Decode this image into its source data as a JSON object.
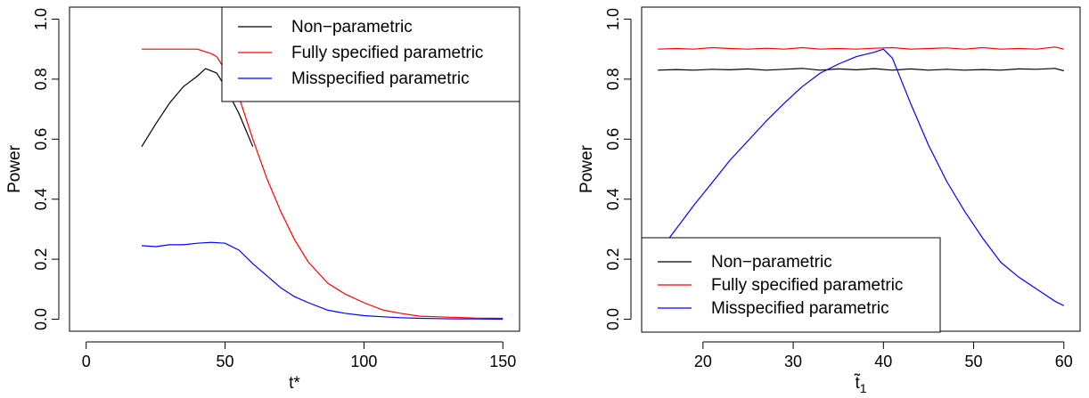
{
  "chart_data": [
    {
      "type": "line",
      "xlabel": "t*",
      "ylabel": "Power",
      "xlim": [
        0,
        150
      ],
      "ylim": [
        0,
        1
      ],
      "xticks": [
        "0",
        "50",
        "100",
        "150"
      ],
      "yticks": [
        "0.0",
        "0.2",
        "0.4",
        "0.6",
        "0.8",
        "1.0"
      ],
      "grid": false,
      "legend_position": "top-right",
      "series": [
        {
          "name": "Non−parametric",
          "color": "#000000",
          "x": [
            20,
            25,
            30,
            35,
            40,
            43,
            47,
            50,
            55,
            60
          ],
          "y": [
            0.575,
            0.65,
            0.72,
            0.775,
            0.81,
            0.835,
            0.82,
            0.775,
            0.685,
            0.575
          ]
        },
        {
          "name": "Fully specified parametric",
          "color": "#ff0000",
          "x": [
            20,
            25,
            30,
            35,
            40,
            45,
            47,
            50,
            55,
            60,
            65,
            70,
            75,
            80,
            87,
            93,
            100,
            107,
            113,
            120,
            127,
            133,
            140,
            150
          ],
          "y": [
            0.9,
            0.9,
            0.9,
            0.9,
            0.9,
            0.885,
            0.875,
            0.83,
            0.74,
            0.6,
            0.47,
            0.36,
            0.265,
            0.19,
            0.12,
            0.085,
            0.055,
            0.03,
            0.02,
            0.01,
            0.008,
            0.006,
            0.004,
            0.003
          ]
        },
        {
          "name": "Misspecified parametric",
          "color": "#0000ff",
          "x": [
            20,
            25,
            30,
            35,
            40,
            45,
            50,
            55,
            60,
            65,
            70,
            75,
            80,
            87,
            93,
            100,
            107,
            113,
            120,
            127,
            133,
            140,
            150
          ],
          "y": [
            0.245,
            0.242,
            0.248,
            0.248,
            0.253,
            0.256,
            0.253,
            0.23,
            0.185,
            0.145,
            0.105,
            0.075,
            0.055,
            0.03,
            0.02,
            0.012,
            0.008,
            0.005,
            0.003,
            0.002,
            0.001,
            0.001,
            0.0
          ]
        }
      ]
    },
    {
      "type": "line",
      "xlabel": "t̃",
      "xlabel_subscript": "1",
      "ylabel": "Power",
      "xlim": [
        15,
        60
      ],
      "ylim": [
        0,
        1
      ],
      "xticks": [
        "20",
        "30",
        "40",
        "50",
        "60"
      ],
      "yticks": [
        "0.0",
        "0.2",
        "0.4",
        "0.6",
        "0.8",
        "1.0"
      ],
      "grid": false,
      "legend_position": "bottom-left",
      "series": [
        {
          "name": "Non−parametric",
          "color": "#000000",
          "x": [
            15,
            17,
            19,
            21,
            23,
            25,
            27,
            29,
            31,
            33,
            35,
            37,
            39,
            41,
            43,
            45,
            47,
            49,
            51,
            53,
            55,
            57,
            59,
            60
          ],
          "y": [
            0.83,
            0.832,
            0.83,
            0.833,
            0.831,
            0.834,
            0.83,
            0.833,
            0.836,
            0.83,
            0.834,
            0.831,
            0.835,
            0.83,
            0.834,
            0.83,
            0.833,
            0.83,
            0.832,
            0.83,
            0.834,
            0.833,
            0.836,
            0.828
          ]
        },
        {
          "name": "Fully specified parametric",
          "color": "#ff0000",
          "x": [
            15,
            17,
            19,
            21,
            23,
            25,
            27,
            29,
            31,
            33,
            35,
            37,
            39,
            41,
            43,
            45,
            47,
            49,
            51,
            53,
            55,
            57,
            59,
            60
          ],
          "y": [
            0.9,
            0.902,
            0.9,
            0.905,
            0.902,
            0.9,
            0.903,
            0.9,
            0.905,
            0.9,
            0.902,
            0.9,
            0.903,
            0.905,
            0.9,
            0.902,
            0.904,
            0.9,
            0.905,
            0.9,
            0.902,
            0.9,
            0.907,
            0.9
          ]
        },
        {
          "name": "Misspecified parametric",
          "color": "#0000ff",
          "x": [
            15,
            17,
            19,
            21,
            23,
            25,
            27,
            29,
            31,
            33,
            35,
            37,
            39,
            40,
            41,
            43,
            45,
            47,
            49,
            51,
            53,
            55,
            57,
            59,
            60
          ],
          "y": [
            0.22,
            0.3,
            0.38,
            0.455,
            0.53,
            0.595,
            0.66,
            0.72,
            0.775,
            0.82,
            0.85,
            0.875,
            0.89,
            0.9,
            0.87,
            0.72,
            0.58,
            0.46,
            0.36,
            0.27,
            0.19,
            0.14,
            0.1,
            0.06,
            0.045
          ]
        }
      ]
    }
  ]
}
